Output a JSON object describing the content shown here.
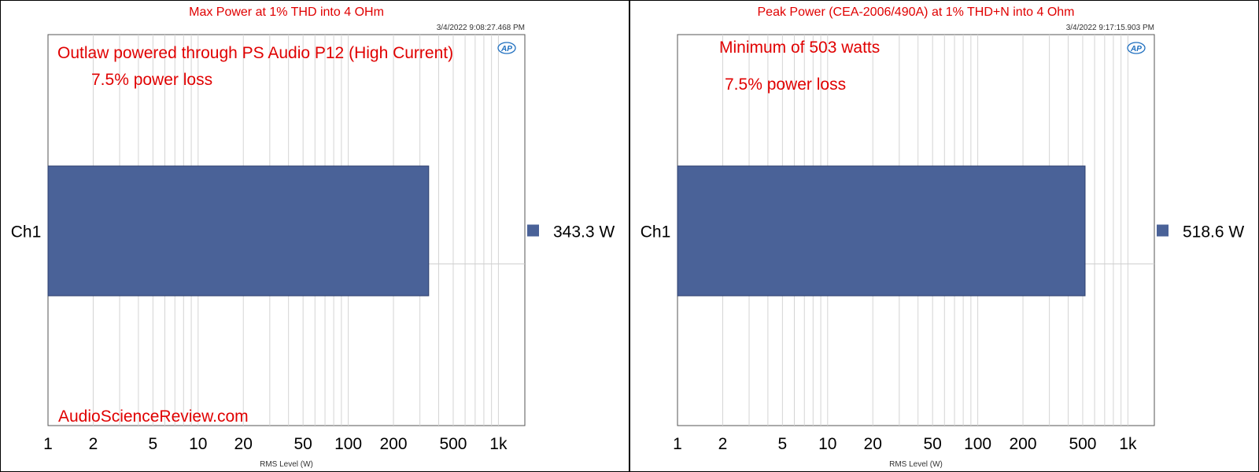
{
  "chart_data": [
    {
      "type": "bar",
      "orientation": "horizontal",
      "title": "Max Power at 1% THD into 4 OHm",
      "timestamp": "3/4/2022 9:08:27.468 PM",
      "xlabel": "RMS Level (W)",
      "x_scale": "log",
      "xlim": [
        1,
        1500
      ],
      "x_ticks": [
        "1",
        "2",
        "5",
        "10",
        "20",
        "50",
        "100",
        "200",
        "500",
        "1k"
      ],
      "categories": [
        "Ch1"
      ],
      "values": [
        343.3
      ],
      "value_labels": [
        "343.3  W"
      ],
      "grid": true,
      "legend": "right",
      "bar_color": "#4a6298",
      "annotations": [
        "Outlaw powered through PS Audio P12 (High Current)",
        "7.5% power loss"
      ],
      "watermark": "AudioScienceReview.com",
      "logo": "AP"
    },
    {
      "type": "bar",
      "orientation": "horizontal",
      "title": "Peak Power (CEA-2006/490A) at 1% THD+N into 4 Ohm",
      "timestamp": "3/4/2022 9:17:15.903 PM",
      "xlabel": "RMS Level (W)",
      "x_scale": "log",
      "xlim": [
        1,
        1500
      ],
      "x_ticks": [
        "1",
        "2",
        "5",
        "10",
        "20",
        "50",
        "100",
        "200",
        "500",
        "1k"
      ],
      "categories": [
        "Ch1"
      ],
      "values": [
        518.6
      ],
      "value_labels": [
        "518.6  W"
      ],
      "grid": true,
      "legend": "right",
      "bar_color": "#4a6298",
      "annotations": [
        "Minimum of 503 watts",
        "7.5% power loss"
      ],
      "watermark": "",
      "logo": "AP"
    }
  ]
}
